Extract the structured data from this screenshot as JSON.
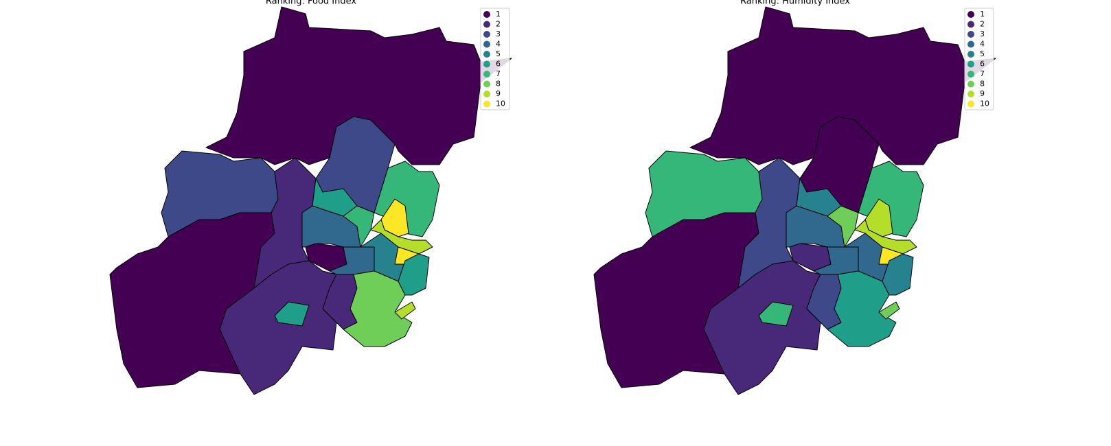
{
  "maps": [
    {
      "title": "Ranking: Food Index",
      "ranks": [
        1,
        3,
        3,
        1,
        2,
        2,
        2,
        6,
        4,
        1,
        6,
        7,
        4,
        5,
        8,
        7,
        10,
        9,
        10,
        6,
        9
      ]
    },
    {
      "title": "Ranking: Humidity Index",
      "ranks": [
        1,
        7,
        1,
        1,
        3,
        2,
        3,
        7,
        4,
        2,
        5,
        8,
        4,
        4,
        6,
        7,
        9,
        9,
        10,
        5,
        8
      ]
    }
  ],
  "legend": {
    "labels": [
      "1",
      "2",
      "3",
      "4",
      "5",
      "6",
      "7",
      "8",
      "9",
      "10"
    ],
    "colors": [
      "#440154",
      "#482878",
      "#3e4989",
      "#31688e",
      "#26828e",
      "#1f9e89",
      "#35b779",
      "#6ece58",
      "#b5de2b",
      "#fde725"
    ]
  }
}
